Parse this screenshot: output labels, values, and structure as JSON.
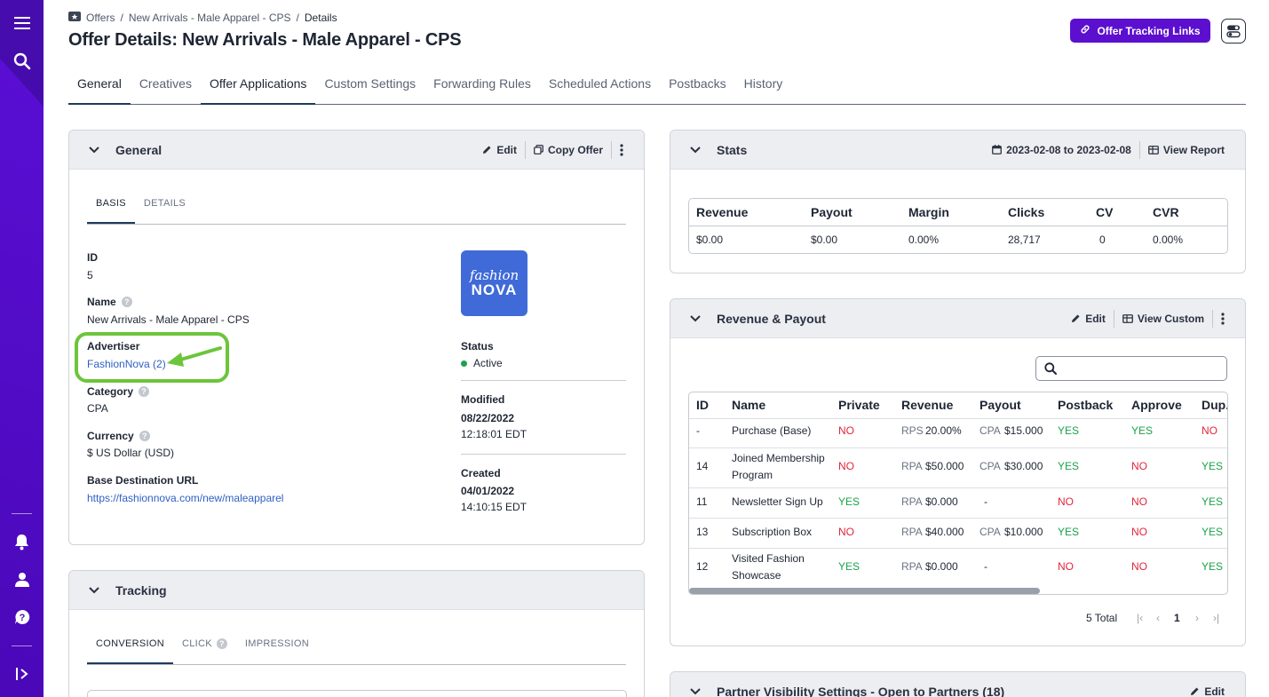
{
  "sidebar": {
    "menu_icon": "hamburger-icon",
    "search_icon": "search-icon",
    "bell_icon": "bell-icon",
    "user_icon": "user-icon",
    "help_icon": "help-chat-icon",
    "expand_icon": "expand-sidebar-icon"
  },
  "breadcrumb": {
    "root": "Offers",
    "parent": "New Arrivals - Male Apparel - CPS",
    "current": "Details",
    "sep": "/"
  },
  "page_title": "Offer Details: New Arrivals - Male Apparel - CPS",
  "header": {
    "tracking_button": "Offer Tracking Links"
  },
  "tabs": [
    "General",
    "Creatives",
    "Offer Applications",
    "Custom Settings",
    "Forwarding Rules",
    "Scheduled Actions",
    "Postbacks",
    "History"
  ],
  "general_card": {
    "title": "General",
    "edit": "Edit",
    "copy": "Copy Offer",
    "subtabs": [
      "BASIS",
      "DETAILS"
    ],
    "id_label": "ID",
    "id_value": "5",
    "name_label": "Name",
    "name_value": "New Arrivals - Male Apparel - CPS",
    "advertiser_label": "Advertiser",
    "advertiser_value": "FashionNova (2)",
    "category_label": "Category",
    "category_value": "CPA",
    "currency_label": "Currency",
    "currency_value": "$ US Dollar (USD)",
    "url_label": "Base Destination URL",
    "url_value": "https://fashionnova.com/new/maleapparel",
    "logo_line1": "fashion",
    "logo_line2": "NOVA",
    "status_label": "Status",
    "status_value": "Active",
    "modified_label": "Modified",
    "modified_date": "08/22/2022",
    "modified_time": "12:18:01 EDT",
    "created_label": "Created",
    "created_date": "04/01/2022",
    "created_time": "14:10:15 EDT"
  },
  "tracking_card": {
    "title": "Tracking",
    "subtabs": [
      "CONVERSION",
      "CLICK",
      "IMPRESSION"
    ]
  },
  "stats_card": {
    "title": "Stats",
    "date_range": "2023-02-08 to 2023-02-08",
    "view_report": "View Report",
    "headers": [
      "Revenue",
      "Payout",
      "Margin",
      "Clicks",
      "CV",
      "CVR"
    ],
    "values": [
      "$0.00",
      "$0.00",
      "0.00%",
      "28,717",
      "0",
      "0.00%"
    ]
  },
  "revenue_card": {
    "title": "Revenue & Payout",
    "edit": "Edit",
    "view_custom": "View Custom",
    "search_placeholder": "",
    "headers": [
      "ID",
      "Name",
      "Private",
      "Revenue",
      "Payout",
      "Postback",
      "Approve",
      "Dup."
    ],
    "rows": [
      {
        "id": "-",
        "name": "Purchase (Base)",
        "private": "NO",
        "rev_type": "RPS",
        "rev": "20.00%",
        "pay_type": "CPA",
        "pay": "$15.000",
        "postback": "YES",
        "approve": "YES",
        "dup": "NO"
      },
      {
        "id": "14",
        "name": "Joined Membership Program",
        "private": "NO",
        "rev_type": "RPA",
        "rev": "$50.000",
        "pay_type": "CPA",
        "pay": "$30.000",
        "postback": "YES",
        "approve": "NO",
        "dup": "YES"
      },
      {
        "id": "11",
        "name": "Newsletter Sign Up",
        "private": "YES",
        "rev_type": "RPA",
        "rev": "$0.000",
        "pay_type": "",
        "pay": "-",
        "postback": "NO",
        "approve": "NO",
        "dup": "YES"
      },
      {
        "id": "13",
        "name": "Subscription Box",
        "private": "NO",
        "rev_type": "RPA",
        "rev": "$40.000",
        "pay_type": "CPA",
        "pay": "$10.000",
        "postback": "YES",
        "approve": "NO",
        "dup": "YES"
      },
      {
        "id": "12",
        "name": "Visited Fashion Showcase",
        "private": "YES",
        "rev_type": "RPA",
        "rev": "$0.000",
        "pay_type": "",
        "pay": "-",
        "postback": "NO",
        "approve": "NO",
        "dup": "YES"
      }
    ],
    "total": "5 Total",
    "page": "1"
  },
  "partner_card": {
    "title": "Partner Visibility Settings - Open to Partners (18)",
    "edit": "Edit"
  },
  "colors": {
    "brand": "#5d0fcf",
    "sidebar": "#4a08b8",
    "yes": "#1aa34a",
    "no": "#e0263c",
    "link": "#2f5fc4",
    "highlight": "#6cc53a"
  }
}
